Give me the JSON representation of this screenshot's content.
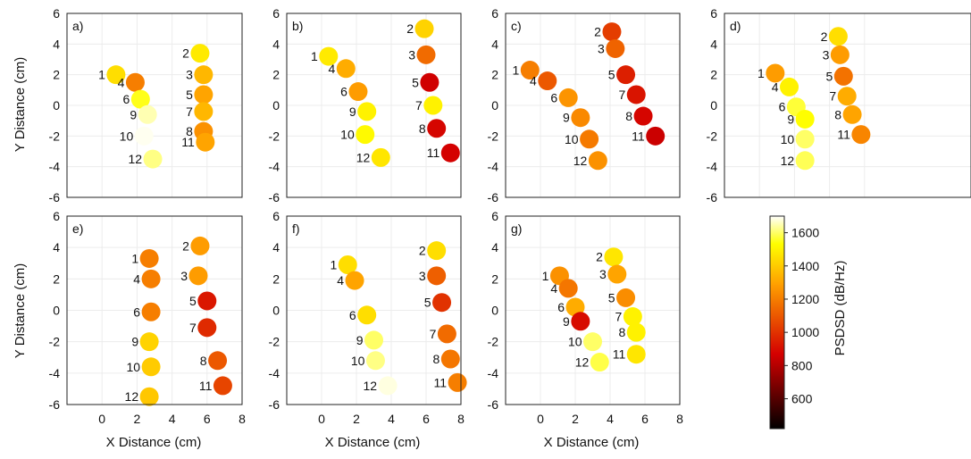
{
  "chart_data": {
    "type": "scatter",
    "xlabel": "X Distance (cm)",
    "ylabel": "Y Distance (cm)",
    "xlim": [
      -2,
      8
    ],
    "ylim": [
      -6,
      6
    ],
    "x_ticks": [
      "0",
      "2",
      "4",
      "6",
      "8"
    ],
    "y_ticks": [
      "6",
      "4",
      "2",
      "0",
      "-2",
      "-4",
      "-6"
    ],
    "colorbar": {
      "label": "PSDSD (dB/Hz)",
      "range": [
        420,
        1700
      ],
      "ticks": [
        "1600",
        "1400",
        "1200",
        "1000",
        "800",
        "600"
      ],
      "tick_values": [
        1600,
        1400,
        1200,
        1000,
        800,
        600
      ]
    },
    "panels": [
      {
        "label": "a)",
        "points": [
          {
            "id": "1",
            "x": 0.8,
            "y": 2.0,
            "v": 1450
          },
          {
            "id": "4",
            "x": 1.9,
            "y": 1.5,
            "v": 1200
          },
          {
            "id": "6",
            "x": 2.2,
            "y": 0.4,
            "v": 1550
          },
          {
            "id": "9",
            "x": 2.6,
            "y": -0.6,
            "v": 1650
          },
          {
            "id": "10",
            "x": 2.4,
            "y": -2.0,
            "v": 1690
          },
          {
            "id": "12",
            "x": 2.9,
            "y": -3.5,
            "v": 1620
          },
          {
            "id": "2",
            "x": 5.6,
            "y": 3.4,
            "v": 1480
          },
          {
            "id": "3",
            "x": 5.8,
            "y": 2.0,
            "v": 1350
          },
          {
            "id": "5",
            "x": 5.8,
            "y": 0.7,
            "v": 1300
          },
          {
            "id": "7",
            "x": 5.8,
            "y": -0.4,
            "v": 1350
          },
          {
            "id": "8",
            "x": 5.8,
            "y": -1.7,
            "v": 1250
          },
          {
            "id": "11",
            "x": 5.9,
            "y": -2.4,
            "v": 1300
          }
        ]
      },
      {
        "label": "b)",
        "points": [
          {
            "id": "1",
            "x": 0.4,
            "y": 3.2,
            "v": 1480
          },
          {
            "id": "4",
            "x": 1.4,
            "y": 2.4,
            "v": 1320
          },
          {
            "id": "6",
            "x": 2.1,
            "y": 0.9,
            "v": 1280
          },
          {
            "id": "9",
            "x": 2.6,
            "y": -0.4,
            "v": 1500
          },
          {
            "id": "10",
            "x": 2.5,
            "y": -1.9,
            "v": 1520
          },
          {
            "id": "12",
            "x": 3.4,
            "y": -3.4,
            "v": 1470
          },
          {
            "id": "2",
            "x": 5.9,
            "y": 5.0,
            "v": 1420
          },
          {
            "id": "3",
            "x": 6.0,
            "y": 3.3,
            "v": 1150
          },
          {
            "id": "5",
            "x": 6.2,
            "y": 1.5,
            "v": 860
          },
          {
            "id": "7",
            "x": 6.4,
            "y": 0.0,
            "v": 1500
          },
          {
            "id": "8",
            "x": 6.6,
            "y": -1.5,
            "v": 880
          },
          {
            "id": "11",
            "x": 7.4,
            "y": -3.1,
            "v": 870
          }
        ]
      },
      {
        "label": "c)",
        "points": [
          {
            "id": "1",
            "x": -0.6,
            "y": 2.3,
            "v": 1200
          },
          {
            "id": "4",
            "x": 0.4,
            "y": 1.6,
            "v": 1100
          },
          {
            "id": "6",
            "x": 1.6,
            "y": 0.5,
            "v": 1260
          },
          {
            "id": "9",
            "x": 2.3,
            "y": -0.8,
            "v": 1230
          },
          {
            "id": "10",
            "x": 2.8,
            "y": -2.2,
            "v": 1190
          },
          {
            "id": "12",
            "x": 3.3,
            "y": -3.6,
            "v": 1250
          },
          {
            "id": "2",
            "x": 4.1,
            "y": 4.8,
            "v": 1030
          },
          {
            "id": "3",
            "x": 4.3,
            "y": 3.7,
            "v": 1130
          },
          {
            "id": "5",
            "x": 4.9,
            "y": 2.0,
            "v": 950
          },
          {
            "id": "7",
            "x": 5.5,
            "y": 0.7,
            "v": 920
          },
          {
            "id": "8",
            "x": 5.9,
            "y": -0.7,
            "v": 880
          },
          {
            "id": "11",
            "x": 6.6,
            "y": -2.0,
            "v": 850
          }
        ]
      },
      {
        "label": "d)",
        "points": [
          {
            "id": "1",
            "x": 0.9,
            "y": 2.1,
            "v": 1280
          },
          {
            "id": "4",
            "x": 1.7,
            "y": 1.2,
            "v": 1500
          },
          {
            "id": "6",
            "x": 2.1,
            "y": -0.1,
            "v": 1570
          },
          {
            "id": "9",
            "x": 2.6,
            "y": -0.9,
            "v": 1530
          },
          {
            "id": "10",
            "x": 2.6,
            "y": -2.2,
            "v": 1600
          },
          {
            "id": "12",
            "x": 2.6,
            "y": -3.6,
            "v": 1590
          },
          {
            "id": "2",
            "x": 4.5,
            "y": 4.5,
            "v": 1450
          },
          {
            "id": "3",
            "x": 4.6,
            "y": 3.3,
            "v": 1280
          },
          {
            "id": "5",
            "x": 4.8,
            "y": 1.9,
            "v": 1170
          },
          {
            "id": "7",
            "x": 5.0,
            "y": 0.6,
            "v": 1320
          },
          {
            "id": "8",
            "x": 5.3,
            "y": -0.6,
            "v": 1300
          },
          {
            "id": "11",
            "x": 5.8,
            "y": -1.9,
            "v": 1220
          }
        ]
      },
      {
        "label": "e)",
        "points": [
          {
            "id": "1",
            "x": 2.7,
            "y": 3.3,
            "v": 1200
          },
          {
            "id": "4",
            "x": 2.8,
            "y": 2.0,
            "v": 1200
          },
          {
            "id": "6",
            "x": 2.8,
            "y": -0.1,
            "v": 1200
          },
          {
            "id": "9",
            "x": 2.7,
            "y": -2.0,
            "v": 1420
          },
          {
            "id": "10",
            "x": 2.8,
            "y": -3.6,
            "v": 1400
          },
          {
            "id": "12",
            "x": 2.7,
            "y": -5.5,
            "v": 1390
          },
          {
            "id": "2",
            "x": 5.6,
            "y": 4.1,
            "v": 1280
          },
          {
            "id": "3",
            "x": 5.5,
            "y": 2.2,
            "v": 1280
          },
          {
            "id": "5",
            "x": 6.0,
            "y": 0.6,
            "v": 930
          },
          {
            "id": "7",
            "x": 6.0,
            "y": -1.1,
            "v": 980
          },
          {
            "id": "8",
            "x": 6.6,
            "y": -3.2,
            "v": 1100
          },
          {
            "id": "11",
            "x": 6.9,
            "y": -4.8,
            "v": 1050
          }
        ]
      },
      {
        "label": "f)",
        "points": [
          {
            "id": "1",
            "x": 1.5,
            "y": 2.9,
            "v": 1450
          },
          {
            "id": "4",
            "x": 1.9,
            "y": 1.9,
            "v": 1300
          },
          {
            "id": "6",
            "x": 2.6,
            "y": -0.3,
            "v": 1450
          },
          {
            "id": "9",
            "x": 3.0,
            "y": -1.9,
            "v": 1600
          },
          {
            "id": "10",
            "x": 3.1,
            "y": -3.2,
            "v": 1620
          },
          {
            "id": "12",
            "x": 3.8,
            "y": -4.8,
            "v": 1680
          },
          {
            "id": "2",
            "x": 6.6,
            "y": 3.8,
            "v": 1450
          },
          {
            "id": "3",
            "x": 6.6,
            "y": 2.2,
            "v": 1120
          },
          {
            "id": "5",
            "x": 6.9,
            "y": 0.5,
            "v": 1000
          },
          {
            "id": "7",
            "x": 7.2,
            "y": -1.5,
            "v": 1150
          },
          {
            "id": "8",
            "x": 7.4,
            "y": -3.1,
            "v": 1180
          },
          {
            "id": "11",
            "x": 7.8,
            "y": -4.6,
            "v": 1200
          }
        ]
      },
      {
        "label": "g)",
        "points": [
          {
            "id": "1",
            "x": 1.1,
            "y": 2.2,
            "v": 1250
          },
          {
            "id": "4",
            "x": 1.6,
            "y": 1.4,
            "v": 1180
          },
          {
            "id": "6",
            "x": 2.0,
            "y": 0.2,
            "v": 1320
          },
          {
            "id": "9",
            "x": 2.3,
            "y": -0.7,
            "v": 900
          },
          {
            "id": "10",
            "x": 3.0,
            "y": -2.0,
            "v": 1600
          },
          {
            "id": "12",
            "x": 3.4,
            "y": -3.3,
            "v": 1580
          },
          {
            "id": "2",
            "x": 4.2,
            "y": 3.4,
            "v": 1470
          },
          {
            "id": "3",
            "x": 4.4,
            "y": 2.3,
            "v": 1300
          },
          {
            "id": "5",
            "x": 4.9,
            "y": 0.8,
            "v": 1240
          },
          {
            "id": "7",
            "x": 5.3,
            "y": -0.4,
            "v": 1500
          },
          {
            "id": "8",
            "x": 5.5,
            "y": -1.4,
            "v": 1500
          },
          {
            "id": "11",
            "x": 5.5,
            "y": -2.8,
            "v": 1470
          }
        ]
      }
    ]
  }
}
